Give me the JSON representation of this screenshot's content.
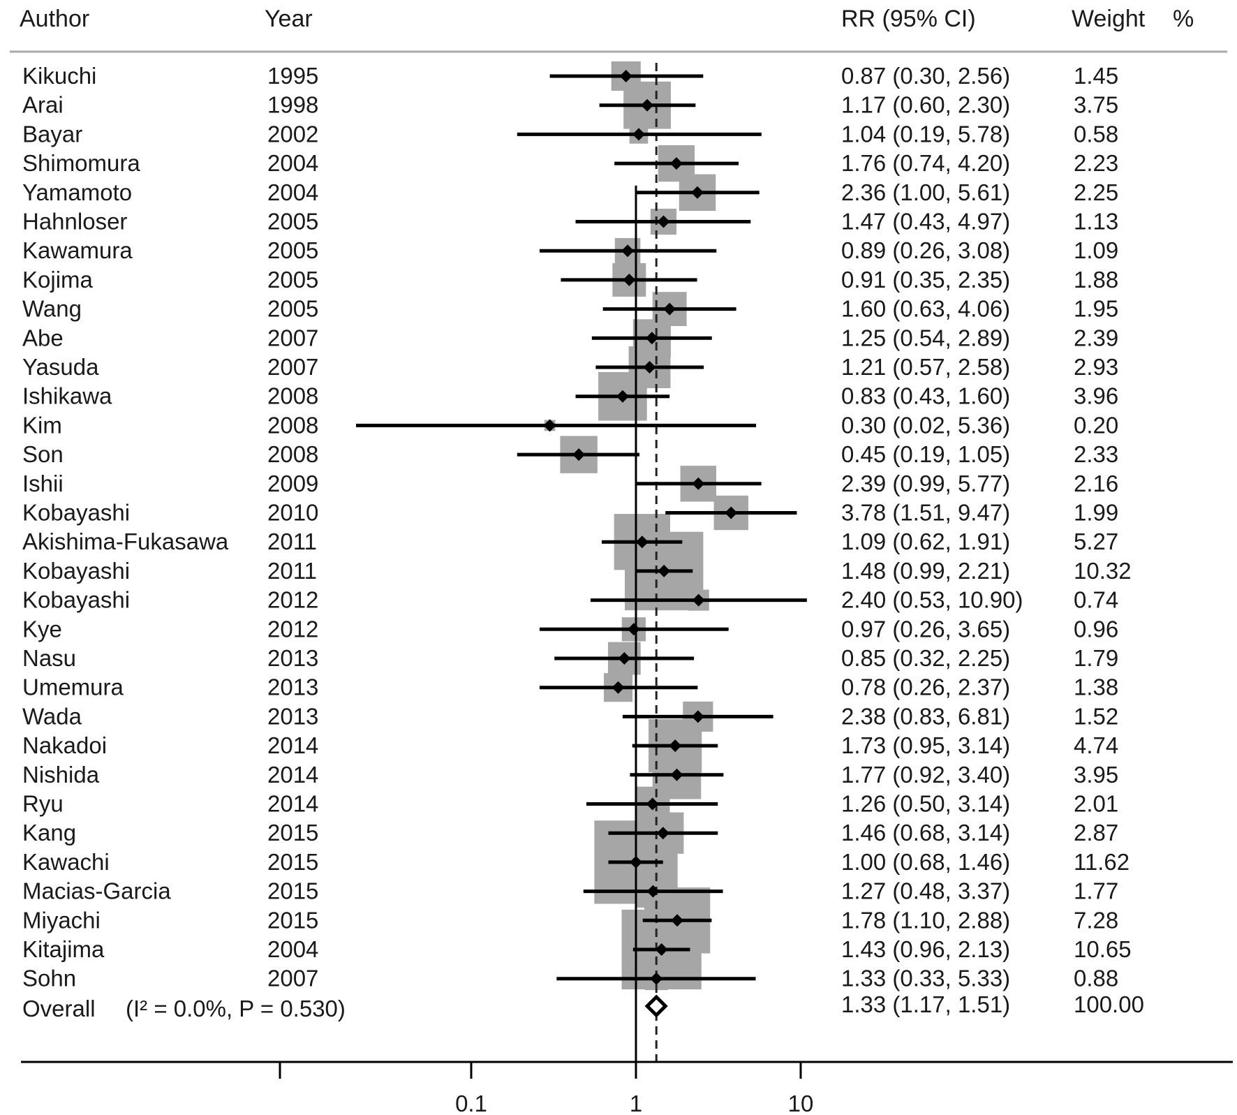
{
  "chart_data": {
    "type": "forest",
    "headers": {
      "author": "Author",
      "year": "Year",
      "rr": "RR (95% CI)",
      "weight": "Weight",
      "weight_unit": "%"
    },
    "x_scale": "log",
    "x_ticks": [
      0.1,
      1,
      10
    ],
    "x_tick_labels": [
      "0.1",
      "1",
      "10"
    ],
    "null_line": 1,
    "studies": [
      {
        "author": "Kikuchi",
        "year": "1995",
        "rr": 0.87,
        "lo": 0.3,
        "hi": 2.56,
        "rr_text": "0.87 (0.30, 2.56)",
        "weight": 1.45,
        "weight_text": "1.45"
      },
      {
        "author": "Arai",
        "year": "1998",
        "rr": 1.17,
        "lo": 0.6,
        "hi": 2.3,
        "rr_text": "1.17 (0.60, 2.30)",
        "weight": 3.75,
        "weight_text": "3.75"
      },
      {
        "author": "Bayar",
        "year": "2002",
        "rr": 1.04,
        "lo": 0.19,
        "hi": 5.78,
        "rr_text": "1.04 (0.19, 5.78)",
        "weight": 0.58,
        "weight_text": "0.58"
      },
      {
        "author": "Shimomura",
        "year": "2004",
        "rr": 1.76,
        "lo": 0.74,
        "hi": 4.2,
        "rr_text": "1.76 (0.74, 4.20)",
        "weight": 2.23,
        "weight_text": "2.23"
      },
      {
        "author": "Yamamoto",
        "year": "2004",
        "rr": 2.36,
        "lo": 1.0,
        "hi": 5.61,
        "rr_text": "2.36 (1.00, 5.61)",
        "weight": 2.25,
        "weight_text": "2.25"
      },
      {
        "author": "Hahnloser",
        "year": "2005",
        "rr": 1.47,
        "lo": 0.43,
        "hi": 4.97,
        "rr_text": "1.47 (0.43, 4.97)",
        "weight": 1.13,
        "weight_text": "1.13"
      },
      {
        "author": "Kawamura",
        "year": "2005",
        "rr": 0.89,
        "lo": 0.26,
        "hi": 3.08,
        "rr_text": "0.89 (0.26, 3.08)",
        "weight": 1.09,
        "weight_text": "1.09"
      },
      {
        "author": "Kojima",
        "year": "2005",
        "rr": 0.91,
        "lo": 0.35,
        "hi": 2.35,
        "rr_text": "0.91 (0.35, 2.35)",
        "weight": 1.88,
        "weight_text": "1.88"
      },
      {
        "author": "Wang",
        "year": "2005",
        "rr": 1.6,
        "lo": 0.63,
        "hi": 4.06,
        "rr_text": "1.60 (0.63, 4.06)",
        "weight": 1.95,
        "weight_text": "1.95"
      },
      {
        "author": "Abe",
        "year": "2007",
        "rr": 1.25,
        "lo": 0.54,
        "hi": 2.89,
        "rr_text": "1.25 (0.54, 2.89)",
        "weight": 2.39,
        "weight_text": "2.39"
      },
      {
        "author": "Yasuda",
        "year": "2007",
        "rr": 1.21,
        "lo": 0.57,
        "hi": 2.58,
        "rr_text": "1.21 (0.57, 2.58)",
        "weight": 2.93,
        "weight_text": "2.93"
      },
      {
        "author": "Ishikawa",
        "year": "2008",
        "rr": 0.83,
        "lo": 0.43,
        "hi": 1.6,
        "rr_text": "0.83 (0.43, 1.60)",
        "weight": 3.96,
        "weight_text": "3.96"
      },
      {
        "author": "Kim",
        "year": "2008",
        "rr": 0.3,
        "lo": 0.02,
        "hi": 5.36,
        "rr_text": "0.30 (0.02, 5.36)",
        "weight": 0.2,
        "weight_text": "0.20"
      },
      {
        "author": "Son",
        "year": "2008",
        "rr": 0.45,
        "lo": 0.19,
        "hi": 1.05,
        "rr_text": "0.45 (0.19, 1.05)",
        "weight": 2.33,
        "weight_text": "2.33"
      },
      {
        "author": "Ishii",
        "year": "2009",
        "rr": 2.39,
        "lo": 0.99,
        "hi": 5.77,
        "rr_text": "2.39 (0.99, 5.77)",
        "weight": 2.16,
        "weight_text": "2.16"
      },
      {
        "author": "Kobayashi",
        "year": "2010",
        "rr": 3.78,
        "lo": 1.51,
        "hi": 9.47,
        "rr_text": "3.78 (1.51, 9.47)",
        "weight": 1.99,
        "weight_text": "1.99"
      },
      {
        "author": "Akishima-Fukasawa",
        "year": "2011",
        "rr": 1.09,
        "lo": 0.62,
        "hi": 1.91,
        "rr_text": "1.09 (0.62, 1.91)",
        "weight": 5.27,
        "weight_text": "5.27"
      },
      {
        "author": "Kobayashi",
        "year": "2011",
        "rr": 1.48,
        "lo": 0.99,
        "hi": 2.21,
        "rr_text": "1.48 (0.99, 2.21)",
        "weight": 10.32,
        "weight_text": "10.32"
      },
      {
        "author": "Kobayashi",
        "year": "2012",
        "rr": 2.4,
        "lo": 0.53,
        "hi": 10.9,
        "rr_text": "2.40 (0.53, 10.90)",
        "weight": 0.74,
        "weight_text": "0.74"
      },
      {
        "author": "Kye",
        "year": "2012",
        "rr": 0.97,
        "lo": 0.26,
        "hi": 3.65,
        "rr_text": "0.97 (0.26, 3.65)",
        "weight": 0.96,
        "weight_text": "0.96"
      },
      {
        "author": "Nasu",
        "year": "2013",
        "rr": 0.85,
        "lo": 0.32,
        "hi": 2.25,
        "rr_text": "0.85 (0.32, 2.25)",
        "weight": 1.79,
        "weight_text": "1.79"
      },
      {
        "author": "Umemura",
        "year": "2013",
        "rr": 0.78,
        "lo": 0.26,
        "hi": 2.37,
        "rr_text": "0.78 (0.26, 2.37)",
        "weight": 1.38,
        "weight_text": "1.38"
      },
      {
        "author": "Wada",
        "year": "2013",
        "rr": 2.38,
        "lo": 0.83,
        "hi": 6.81,
        "rr_text": "2.38 (0.83, 6.81)",
        "weight": 1.52,
        "weight_text": "1.52"
      },
      {
        "author": "Nakadoi",
        "year": "2014",
        "rr": 1.73,
        "lo": 0.95,
        "hi": 3.14,
        "rr_text": "1.73 (0.95, 3.14)",
        "weight": 4.74,
        "weight_text": "4.74"
      },
      {
        "author": "Nishida",
        "year": "2014",
        "rr": 1.77,
        "lo": 0.92,
        "hi": 3.4,
        "rr_text": "1.77 (0.92, 3.40)",
        "weight": 3.95,
        "weight_text": "3.95"
      },
      {
        "author": "Ryu",
        "year": "2014",
        "rr": 1.26,
        "lo": 0.5,
        "hi": 3.14,
        "rr_text": "1.26 (0.50, 3.14)",
        "weight": 2.01,
        "weight_text": "2.01"
      },
      {
        "author": "Kang",
        "year": "2015",
        "rr": 1.46,
        "lo": 0.68,
        "hi": 3.14,
        "rr_text": "1.46 (0.68, 3.14)",
        "weight": 2.87,
        "weight_text": "2.87"
      },
      {
        "author": "Kawachi",
        "year": "2015",
        "rr": 1.0,
        "lo": 0.68,
        "hi": 1.46,
        "rr_text": "1.00 (0.68, 1.46)",
        "weight": 11.62,
        "weight_text": "11.62"
      },
      {
        "author": "Macias-Garcia",
        "year": "2015",
        "rr": 1.27,
        "lo": 0.48,
        "hi": 3.37,
        "rr_text": "1.27 (0.48, 3.37)",
        "weight": 1.77,
        "weight_text": "1.77"
      },
      {
        "author": "Miyachi",
        "year": "2015",
        "rr": 1.78,
        "lo": 1.1,
        "hi": 2.88,
        "rr_text": "1.78 (1.10, 2.88)",
        "weight": 7.28,
        "weight_text": "7.28"
      },
      {
        "author": "Kitajima",
        "year": "2004",
        "rr": 1.43,
        "lo": 0.96,
        "hi": 2.13,
        "rr_text": "1.43 (0.96, 2.13)",
        "weight": 10.65,
        "weight_text": "10.65"
      },
      {
        "author": "Sohn",
        "year": "2007",
        "rr": 1.33,
        "lo": 0.33,
        "hi": 5.33,
        "rr_text": "1.33 (0.33, 5.33)",
        "weight": 0.88,
        "weight_text": "0.88"
      }
    ],
    "overall": {
      "label": "Overall",
      "stat_text": "(I² = 0.0%, P = 0.530)",
      "rr": 1.33,
      "lo": 1.17,
      "hi": 1.51,
      "rr_text": "1.33 (1.17, 1.51)",
      "weight_text": "100.00"
    }
  }
}
